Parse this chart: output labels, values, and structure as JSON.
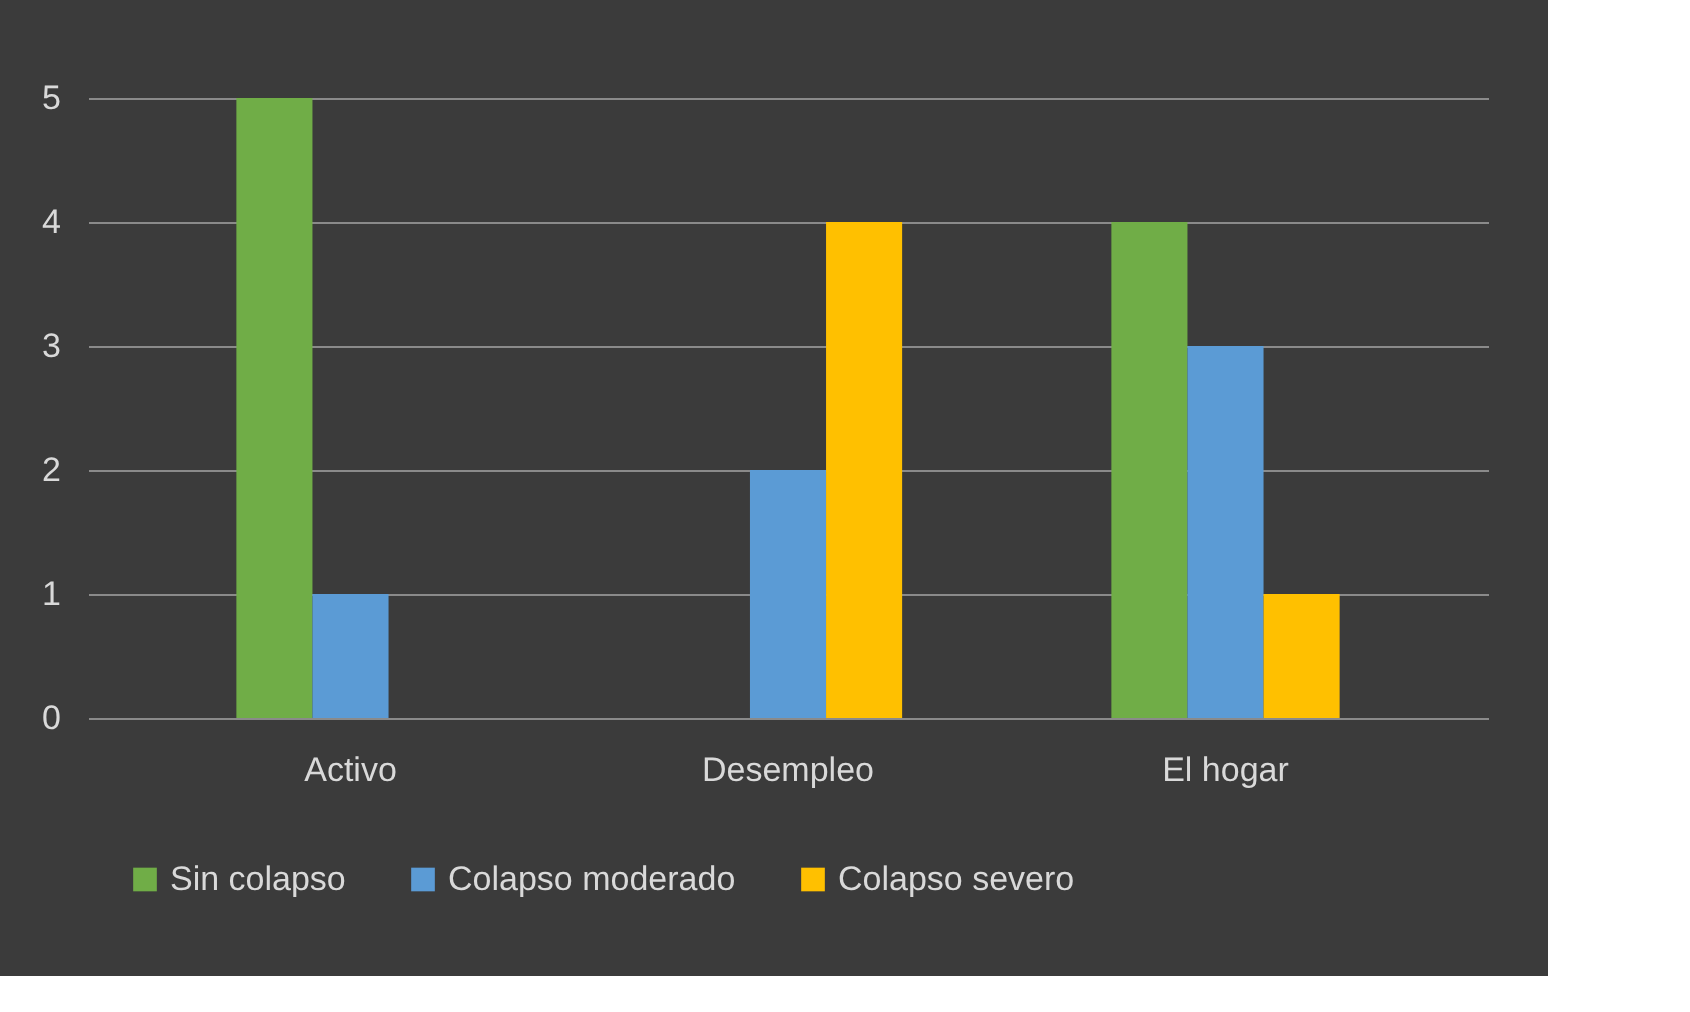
{
  "chart_data": {
    "type": "bar",
    "categories": [
      "Activo",
      "Desempleo",
      "El hogar"
    ],
    "series": [
      {
        "name": "Sin colapso",
        "color": "#70ad47",
        "values": [
          5,
          0,
          4
        ]
      },
      {
        "name": "Colapso moderado",
        "color": "#5b9bd5",
        "values": [
          1,
          2,
          3
        ]
      },
      {
        "name": "Colapso severo",
        "color": "#ffc000",
        "values": [
          0,
          4,
          1
        ]
      }
    ],
    "ylim": [
      0,
      5
    ],
    "yticks": [
      0,
      1,
      2,
      3,
      4,
      5
    ],
    "grid": "y",
    "legend": "bottom"
  }
}
